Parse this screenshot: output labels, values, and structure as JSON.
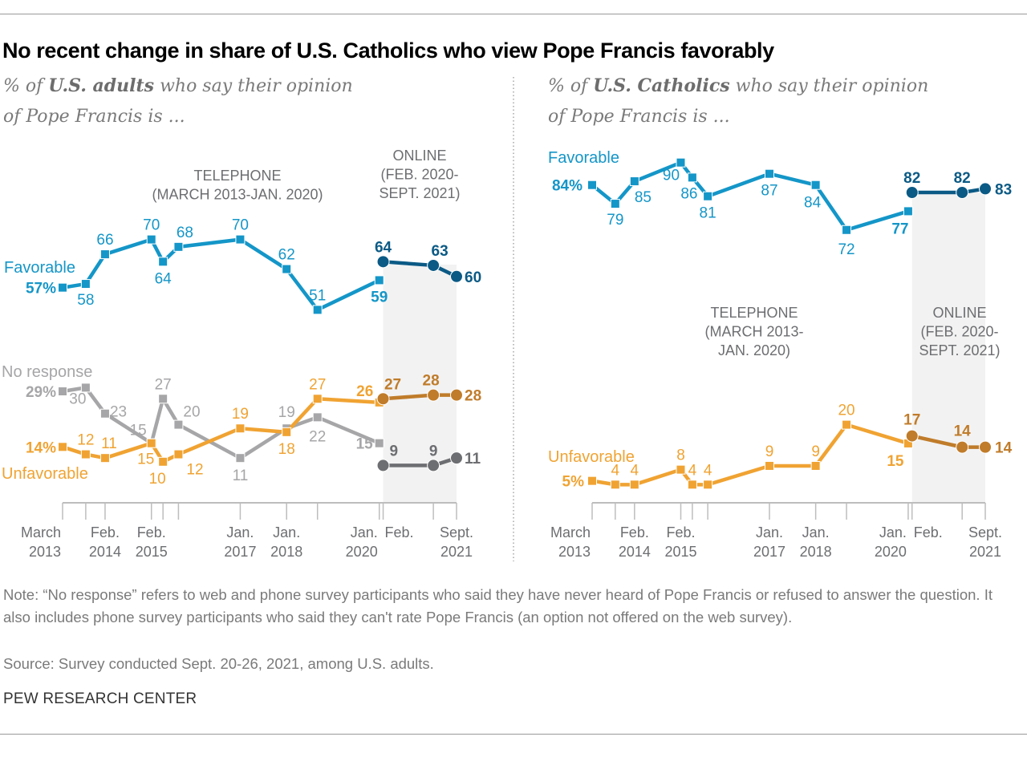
{
  "title": "No recent change in share of U.S. Catholics who view Pope Francis favorably",
  "notes": "Note: “No response” refers to web and phone survey participants who said they have never heard of Pope Francis or refused to answer the question. It also includes phone survey participants who said they can't rate Pope Francis (an option not offered on the web survey).",
  "source": "Source: Survey conducted Sept. 20-26, 2021, among U.S. adults.",
  "brand": "PEW RESEARCH CENTER",
  "colors": {
    "favorable": "#1496c8",
    "favorable_online": "#0b5a85",
    "unfavorable": "#f0a332",
    "unfavorable_online": "#c07c2a",
    "no_response": "#a6a6a8",
    "no_response_online": "#6d6e71",
    "online_shading": "#f2f2f2"
  },
  "chart_data": [
    {
      "type": "line",
      "subtitle": {
        "pre": "% of ",
        "bold": "U.S. adults",
        "post": " who say their opinion",
        "line2": "of Pope Francis is ..."
      },
      "mode_labels": {
        "telephone": [
          "TELEPHONE",
          "(MARCH 2013-JAN. 2020)"
        ],
        "online": [
          "ONLINE",
          "(FEB. 2020-",
          "SEPT. 2021)"
        ]
      },
      "online_period": [
        "2020-02",
        "2021-09"
      ],
      "x_ticks": [
        "2013-03",
        "2013-09",
        "2014-02",
        "2015-02",
        "2015-05",
        "2015-09",
        "2017-01",
        "2018-01",
        "2018-09",
        "2020-01",
        "2020-02",
        "2021-03",
        "2021-09"
      ],
      "x_tick_labels": [
        {
          "date": "2013-03",
          "lines": [
            "March",
            "2013"
          ],
          "anchor": "end"
        },
        {
          "date": "2014-02",
          "lines": [
            "Feb.",
            "2014"
          ],
          "anchor": "middle"
        },
        {
          "date": "2015-02",
          "lines": [
            "Feb.",
            "2015"
          ],
          "anchor": "middle"
        },
        {
          "date": "2017-01",
          "lines": [
            "Jan.",
            "2017"
          ],
          "anchor": "middle"
        },
        {
          "date": "2018-01",
          "lines": [
            "Jan.",
            "2018"
          ],
          "anchor": "middle"
        },
        {
          "date": "2020-01",
          "lines": [
            "Jan.",
            "2020"
          ],
          "anchor": "end"
        },
        {
          "date": "2020-02",
          "lines": [
            "Feb.",
            ""
          ],
          "anchor": "start"
        },
        {
          "date": "2021-09",
          "lines": [
            "Sept.",
            "2021"
          ],
          "anchor": "middle"
        }
      ],
      "series": [
        {
          "name": "Favorable",
          "color_key": "favorable",
          "values": [
            57,
            58,
            66,
            70,
            64,
            68,
            70,
            62,
            51,
            59,
            64,
            63,
            60
          ]
        },
        {
          "name": "No response",
          "color_key": "no_response",
          "values": [
            29,
            30,
            23,
            15,
            27,
            20,
            11,
            19,
            22,
            15,
            9,
            9,
            11
          ]
        },
        {
          "name": "Unfavorable",
          "color_key": "unfavorable",
          "values": [
            14,
            12,
            11,
            15,
            10,
            12,
            19,
            18,
            27,
            26,
            27,
            28,
            28
          ]
        }
      ],
      "telephone_points": 10
    },
    {
      "type": "line",
      "subtitle": {
        "pre": "% of ",
        "bold": "U.S. Catholics",
        "post": " who say their opinion",
        "line2": "of Pope Francis is ..."
      },
      "mode_labels": {
        "telephone": [
          "TELEPHONE",
          "(MARCH 2013-",
          "JAN. 2020)"
        ],
        "online": [
          "ONLINE",
          "(FEB. 2020-",
          "SEPT. 2021)"
        ]
      },
      "online_period": [
        "2020-02",
        "2021-09"
      ],
      "x_ticks": [
        "2013-03",
        "2013-09",
        "2014-02",
        "2015-02",
        "2015-05",
        "2015-09",
        "2017-01",
        "2018-01",
        "2018-09",
        "2020-01",
        "2020-02",
        "2021-03",
        "2021-09"
      ],
      "x_tick_labels": [
        {
          "date": "2013-03",
          "lines": [
            "March",
            "2013"
          ],
          "anchor": "end"
        },
        {
          "date": "2014-02",
          "lines": [
            "Feb.",
            "2014"
          ],
          "anchor": "middle"
        },
        {
          "date": "2015-02",
          "lines": [
            "Feb.",
            "2015"
          ],
          "anchor": "middle"
        },
        {
          "date": "2017-01",
          "lines": [
            "Jan.",
            "2017"
          ],
          "anchor": "middle"
        },
        {
          "date": "2018-01",
          "lines": [
            "Jan.",
            "2018"
          ],
          "anchor": "middle"
        },
        {
          "date": "2020-01",
          "lines": [
            "Jan.",
            "2020"
          ],
          "anchor": "end"
        },
        {
          "date": "2020-02",
          "lines": [
            "Feb.",
            ""
          ],
          "anchor": "start"
        },
        {
          "date": "2021-09",
          "lines": [
            "Sept.",
            "2021"
          ],
          "anchor": "middle"
        }
      ],
      "series": [
        {
          "name": "Favorable",
          "color_key": "favorable",
          "values": [
            84,
            79,
            85,
            90,
            86,
            81,
            87,
            84,
            72,
            77,
            82,
            82,
            83
          ]
        },
        {
          "name": "Unfavorable",
          "color_key": "unfavorable",
          "values": [
            5,
            4,
            4,
            8,
            4,
            4,
            9,
            9,
            20,
            15,
            17,
            14,
            14
          ]
        }
      ],
      "telephone_points": 10
    }
  ]
}
